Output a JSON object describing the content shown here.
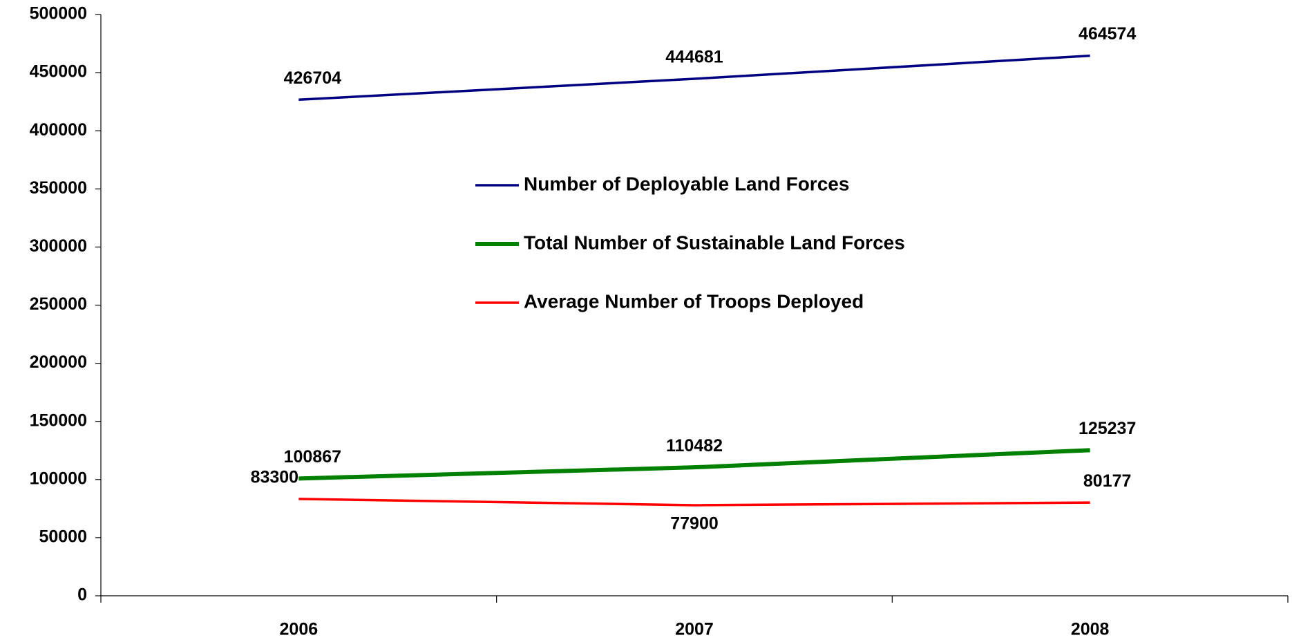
{
  "chart_data": {
    "type": "line",
    "categories": [
      "2006",
      "2007",
      "2008"
    ],
    "series": [
      {
        "name": "Number of Deployable Land Forces",
        "color": "#000080",
        "values": [
          426704,
          444681,
          464574
        ]
      },
      {
        "name": "Total Number of Sustainable Land Forces",
        "color": "#008000",
        "values": [
          100867,
          110482,
          125237
        ]
      },
      {
        "name": "Average Number of Troops Deployed",
        "color": "#ff0000",
        "values": [
          83300,
          77900,
          80177
        ]
      }
    ],
    "ylim": [
      0,
      500000
    ],
    "yticks": [
      0,
      50000,
      100000,
      150000,
      200000,
      250000,
      300000,
      350000,
      400000,
      450000,
      500000
    ],
    "grid": false,
    "legend": "center"
  }
}
